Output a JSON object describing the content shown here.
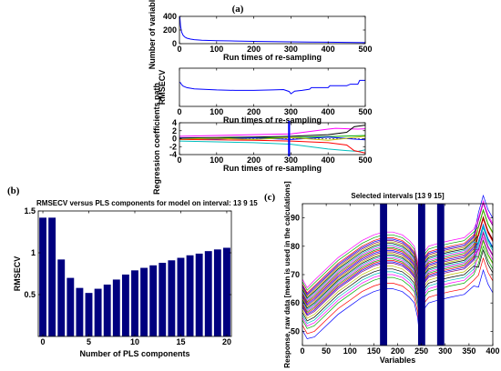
{
  "panel_labels": [
    "(a)",
    "(b)",
    "(c)"
  ],
  "chart_data": [
    {
      "id": "a1",
      "type": "line",
      "panel": "(a)",
      "title": "",
      "xlabel": "Run times of re-sampling",
      "ylabel": "Number of variables",
      "xlim": [
        0,
        500
      ],
      "ylim": [
        0,
        400
      ],
      "xticks": [
        0,
        100,
        200,
        300,
        400,
        500
      ],
      "yticks": [
        0,
        200,
        400
      ],
      "series": [
        {
          "color": "#0000ff",
          "x": [
            1,
            3,
            6,
            10,
            15,
            20,
            30,
            40,
            60,
            80,
            100,
            150,
            200,
            250,
            300,
            350,
            400,
            450,
            500
          ],
          "y": [
            400,
            260,
            170,
            120,
            95,
            80,
            66,
            58,
            50,
            46,
            43,
            38,
            34,
            30,
            27,
            24,
            21,
            18,
            15
          ]
        }
      ]
    },
    {
      "id": "a2",
      "type": "line",
      "panel": "(a)",
      "title": "",
      "xlabel": "Run times of re-sampling",
      "ylabel": "RMSECV",
      "xlim": [
        0,
        500
      ],
      "ylim": [
        0,
        1
      ],
      "xticks": [
        0,
        100,
        200,
        300,
        400,
        500
      ],
      "yticks": [],
      "series": [
        {
          "color": "#0000ff",
          "x": [
            0,
            3,
            6,
            10,
            20,
            40,
            60,
            100,
            150,
            200,
            250,
            280,
            295,
            300,
            310,
            330,
            350,
            355,
            400,
            405,
            450,
            460,
            480,
            485,
            500
          ],
          "y": [
            0.63,
            0.62,
            0.57,
            0.53,
            0.49,
            0.46,
            0.45,
            0.43,
            0.42,
            0.42,
            0.43,
            0.44,
            0.39,
            0.33,
            0.4,
            0.42,
            0.45,
            0.49,
            0.49,
            0.54,
            0.54,
            0.58,
            0.58,
            0.68,
            0.68
          ]
        }
      ]
    },
    {
      "id": "a3",
      "type": "line",
      "panel": "(a)",
      "title": "",
      "xlabel": "Run times of re-sampling",
      "ylabel": "Regression coefficients path",
      "xlim": [
        0,
        500
      ],
      "ylim": [
        -4,
        4
      ],
      "xticks": [
        0,
        100,
        200,
        300,
        400,
        500
      ],
      "yticks": [
        -4,
        -2,
        0,
        2,
        4
      ],
      "vline_x": 295,
      "series": [
        {
          "color": "#ff00ff",
          "x": [
            0,
            100,
            200,
            300,
            350,
            400,
            420,
            480,
            500
          ],
          "y": [
            0.6,
            0.8,
            1.0,
            1.2,
            1.8,
            2.4,
            2.6,
            2.4,
            2.5
          ]
        },
        {
          "color": "#00bfbf",
          "x": [
            0,
            100,
            200,
            300,
            350,
            400,
            450,
            480,
            500
          ],
          "y": [
            -0.6,
            -0.8,
            -1.0,
            -1.4,
            -2.0,
            -2.6,
            -3.0,
            -3.2,
            -2.8
          ]
        },
        {
          "color": "#000000",
          "x": [
            0,
            100,
            200,
            300,
            400,
            450,
            470,
            500
          ],
          "y": [
            0.2,
            0.3,
            0.4,
            0.6,
            1.0,
            1.6,
            3.0,
            3.4
          ]
        },
        {
          "color": "#ff0000",
          "x": [
            0,
            100,
            200,
            300,
            400,
            450,
            470,
            500
          ],
          "y": [
            -0.2,
            -0.3,
            -0.4,
            -0.6,
            -1.0,
            -1.6,
            -3.0,
            -3.6
          ]
        },
        {
          "color": "#00aa00",
          "x": [
            0,
            100,
            200,
            300,
            400,
            500
          ],
          "y": [
            0.0,
            0.1,
            0.2,
            0.3,
            0.5,
            0.8
          ]
        },
        {
          "color": "#0000ff",
          "x": [
            0,
            100,
            200,
            300,
            400,
            500
          ],
          "y": [
            0.1,
            -0.1,
            0.2,
            -0.2,
            0.4,
            -0.3
          ]
        },
        {
          "color": "#bfbf00",
          "x": [
            0,
            100,
            200,
            300,
            400,
            500
          ],
          "y": [
            -0.1,
            0.1,
            -0.2,
            0.3,
            -0.4,
            0.6
          ]
        }
      ]
    },
    {
      "id": "b",
      "type": "bar",
      "panel": "(b)",
      "title": "RMSECV versus PLS components for model on interval:  13   9  15",
      "xlabel": "Number of PLS components",
      "ylabel": "RMSECV",
      "xlim": [
        -0.5,
        20.5
      ],
      "ylim": [
        0,
        1.5
      ],
      "xticks": [
        0,
        5,
        10,
        15,
        20
      ],
      "yticks": [
        0.5,
        1,
        1.5
      ],
      "color": "#00007f",
      "categories": [
        0,
        1,
        2,
        3,
        4,
        5,
        6,
        7,
        8,
        9,
        10,
        11,
        12,
        13,
        14,
        15,
        16,
        17,
        18,
        19,
        20
      ],
      "values": [
        1.42,
        1.42,
        0.92,
        0.7,
        0.58,
        0.52,
        0.57,
        0.62,
        0.68,
        0.74,
        0.79,
        0.82,
        0.85,
        0.88,
        0.91,
        0.94,
        0.97,
        0.99,
        1.02,
        1.04,
        1.06
      ]
    },
    {
      "id": "c",
      "type": "line",
      "panel": "(c)",
      "title": "Selected intervals [13    9  15]",
      "xlabel": "Variables",
      "ylabel": "Response, raw data [mean is used in the calculations]",
      "xlim": [
        0,
        400
      ],
      "ylim": [
        45,
        95
      ],
      "xticks": [
        0,
        50,
        100,
        150,
        200,
        250,
        300,
        350,
        400
      ],
      "yticks": [
        50,
        60,
        70,
        80,
        90
      ],
      "intervals": [
        [
          163,
          178
        ],
        [
          243,
          258
        ],
        [
          283,
          298
        ]
      ],
      "interval_color": "#00007f",
      "base_curve": {
        "x": [
          0,
          10,
          25,
          50,
          75,
          100,
          125,
          150,
          170,
          190,
          210,
          225,
          235,
          242,
          246,
          250,
          256,
          265,
          285,
          310,
          340,
          360,
          370,
          380,
          390,
          400
        ],
        "y": [
          63,
          60,
          62,
          66,
          70,
          73,
          76,
          78,
          79,
          79,
          78,
          76,
          74,
          69,
          63,
          67,
          72,
          74,
          75,
          76,
          77,
          80,
          84,
          90,
          85,
          82
        ]
      },
      "curve_offsets": [
        -14,
        -12,
        -10,
        -9,
        -8,
        -7,
        -6,
        -5,
        -4.5,
        -4,
        -3.5,
        -3,
        -2.5,
        -2,
        -1.5,
        -1,
        -0.5,
        0,
        0.5,
        1,
        1.5,
        2,
        2.5,
        3,
        3.5,
        4,
        5,
        6
      ],
      "curve_colors": [
        "#0000ff",
        "#ff0000",
        "#00aa00",
        "#ff00ff",
        "#00bfbf",
        "#000000",
        "#bfbf00",
        "#7f007f"
      ]
    }
  ]
}
